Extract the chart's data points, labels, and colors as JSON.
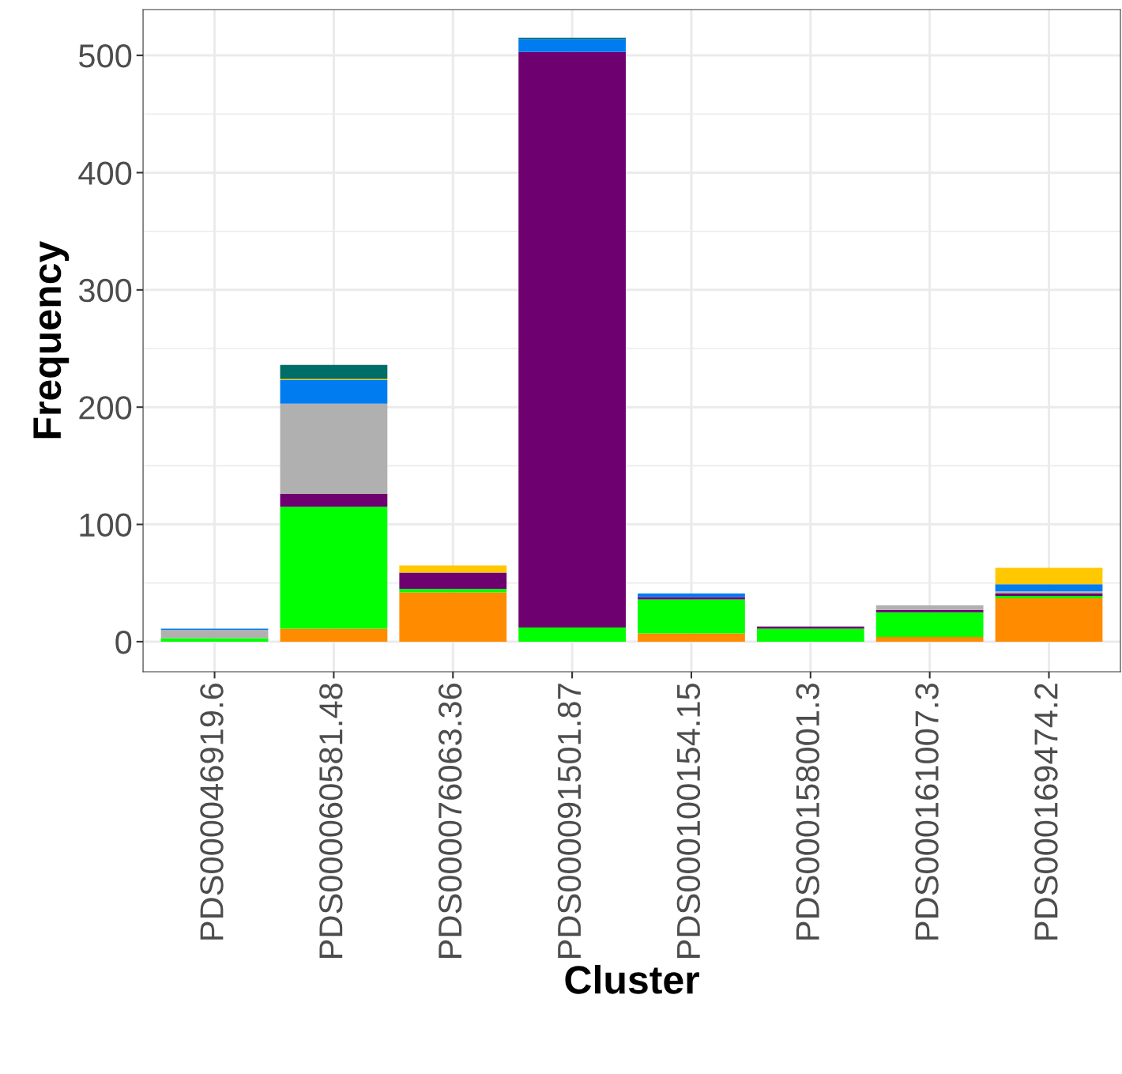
{
  "chart_data": {
    "type": "bar",
    "stacked": true,
    "xlabel": "Cluster",
    "ylabel": "Frequency",
    "categories": [
      "PDS000046919.6",
      "PDS000060581.48",
      "PDS000076063.36",
      "PDS000091501.87",
      "PDS000100154.15",
      "PDS000158001.3",
      "PDS000161007.3",
      "PDS000169474.2"
    ],
    "series": [
      {
        "color": "#ff8c00",
        "values": [
          0,
          11,
          42,
          0,
          7,
          0,
          4,
          37
        ]
      },
      {
        "color": "#00ff00",
        "values": [
          3,
          104,
          3,
          12,
          29,
          11,
          21,
          2
        ]
      },
      {
        "color": "#6f0070",
        "values": [
          0,
          11,
          14,
          491,
          2,
          2,
          2,
          2
        ]
      },
      {
        "color": "#b0b0b0",
        "values": [
          7,
          77,
          0,
          0,
          0,
          0,
          4,
          2
        ]
      },
      {
        "color": "#007cf0",
        "values": [
          1,
          20,
          0,
          11,
          3,
          0,
          0,
          6
        ]
      },
      {
        "color": "#ffc800",
        "values": [
          0,
          1,
          6,
          0,
          0,
          0,
          0,
          14
        ]
      },
      {
        "color": "#006e68",
        "values": [
          0,
          12,
          0,
          1,
          0,
          0,
          0,
          0
        ]
      }
    ],
    "ylim": [
      -25.7,
      539
    ],
    "yticks": [
      0,
      100,
      200,
      300,
      400,
      500
    ],
    "grid": true
  }
}
